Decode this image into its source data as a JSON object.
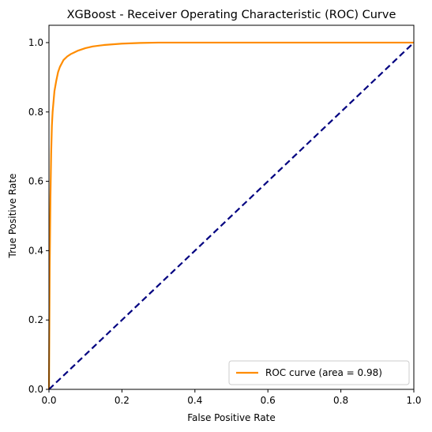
{
  "chart_data": {
    "type": "line",
    "title": "XGBoost - Receiver Operating Characteristic (ROC) Curve",
    "xlabel": "False Positive Rate",
    "ylabel": "True Positive Rate",
    "xlim": [
      0.0,
      1.0
    ],
    "ylim": [
      0.0,
      1.05
    ],
    "x_ticks": [
      "0.0",
      "0.2",
      "0.4",
      "0.6",
      "0.8",
      "1.0"
    ],
    "y_ticks": [
      "0.0",
      "0.2",
      "0.4",
      "0.6",
      "0.8",
      "1.0"
    ],
    "grid": false,
    "legend_position": "lower-right",
    "series": [
      {
        "name": "ROC curve (area = 0.98)",
        "color": "#ff8c00",
        "line_style": "solid",
        "x": [
          0.0,
          0.002,
          0.004,
          0.006,
          0.008,
          0.01,
          0.015,
          0.02,
          0.025,
          0.03,
          0.04,
          0.05,
          0.06,
          0.07,
          0.08,
          0.1,
          0.12,
          0.15,
          0.2,
          0.25,
          0.3,
          0.4,
          0.5,
          0.6,
          0.8,
          1.0
        ],
        "y": [
          0.0,
          0.35,
          0.55,
          0.68,
          0.76,
          0.8,
          0.86,
          0.89,
          0.915,
          0.93,
          0.95,
          0.96,
          0.967,
          0.972,
          0.977,
          0.984,
          0.989,
          0.993,
          0.997,
          0.999,
          1.0,
          1.0,
          1.0,
          1.0,
          1.0,
          1.0
        ]
      },
      {
        "color": "#000080",
        "line_style": "dashed",
        "x": [
          0.0,
          1.0
        ],
        "y": [
          0.0,
          1.0
        ]
      }
    ]
  }
}
